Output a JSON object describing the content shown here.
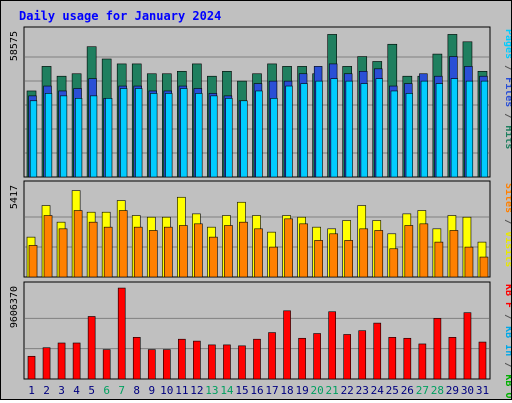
{
  "chart_data": {
    "type": "bar",
    "title": "Daily usage for January 2024",
    "categories": [
      "1",
      "2",
      "3",
      "4",
      "5",
      "6",
      "7",
      "8",
      "9",
      "10",
      "11",
      "12",
      "13",
      "14",
      "15",
      "16",
      "17",
      "18",
      "19",
      "20",
      "21",
      "22",
      "23",
      "24",
      "25",
      "26",
      "27",
      "28",
      "29",
      "30",
      "31"
    ],
    "weekend_days": [
      "6",
      "7",
      "13",
      "14",
      "20",
      "21",
      "27",
      "28"
    ],
    "panels": [
      {
        "name": "pages-files-hits",
        "max_label": "58575",
        "ylim": [
          0,
          58575
        ],
        "right_label_parts": [
          {
            "text": "Pages",
            "color": "#00ccff"
          },
          {
            "text": " / ",
            "color": "#555555"
          },
          {
            "text": "Files",
            "color": "#2a4fd6"
          },
          {
            "text": " / ",
            "color": "#555555"
          },
          {
            "text": "Hits",
            "color": "#1f7f5f"
          }
        ],
        "series": [
          {
            "name": "Hits",
            "color": "#1f7f5f",
            "values": [
              35000,
              45000,
              41000,
              42000,
              53000,
              48000,
              46000,
              46000,
              42000,
              42000,
              43000,
              46000,
              41000,
              43000,
              39000,
              42000,
              46000,
              45000,
              45000,
              42000,
              58000,
              45000,
              49000,
              47000,
              54000,
              41000,
              41000,
              50000,
              58000,
              55000,
              43000
            ]
          },
          {
            "name": "Files",
            "color": "#2a4fd6",
            "values": [
              33000,
              37000,
              35000,
              36000,
              40000,
              32000,
              37000,
              37000,
              35000,
              35000,
              37000,
              36000,
              34000,
              33000,
              31000,
              38000,
              39000,
              39000,
              42000,
              45000,
              46000,
              42000,
              43000,
              44000,
              37000,
              38000,
              42000,
              41000,
              49000,
              45000,
              41000
            ]
          },
          {
            "name": "Pages",
            "color": "#00ccff",
            "values": [
              31000,
              34000,
              33000,
              32000,
              33000,
              32000,
              36000,
              36000,
              34000,
              34000,
              36000,
              34000,
              33000,
              32000,
              31000,
              35000,
              32000,
              37000,
              38000,
              39000,
              40000,
              39000,
              38000,
              40000,
              35000,
              34000,
              39000,
              38000,
              40000,
              39000,
              39000
            ]
          }
        ]
      },
      {
        "name": "visits-sites",
        "max_label": "5417",
        "ylim": [
          0,
          5417
        ],
        "right_label_parts": [
          {
            "text": "Sites",
            "color": "#ff8000"
          },
          {
            "text": " / ",
            "color": "#555555"
          },
          {
            "text": "Visits",
            "color": "#e8e800"
          }
        ],
        "series": [
          {
            "name": "Visits",
            "color": "#ffff00",
            "values": [
              2400,
              4300,
              3300,
              5200,
              3900,
              3900,
              4600,
              3700,
              3600,
              3600,
              4800,
              3800,
              3000,
              3700,
              4500,
              3700,
              2700,
              3700,
              3600,
              3000,
              2900,
              3400,
              4300,
              3400,
              2600,
              3800,
              4000,
              2900,
              3700,
              3600,
              2100
            ]
          },
          {
            "name": "Sites",
            "color": "#ff8000",
            "values": [
              1900,
              3700,
              2900,
              4000,
              3300,
              3000,
              4000,
              3000,
              2800,
              3000,
              3100,
              3200,
              2400,
              3100,
              3300,
              2900,
              1800,
              3500,
              3200,
              2200,
              2600,
              2200,
              2900,
              2800,
              1700,
              3100,
              3200,
              2100,
              2800,
              1800,
              1200
            ]
          }
        ]
      },
      {
        "name": "kb-in-out",
        "max_label": "9606370",
        "ylim": [
          0,
          9606370
        ],
        "right_label_parts": [
          {
            "text": "KB F",
            "color": "#ff0000"
          },
          {
            "text": " / ",
            "color": "#555555"
          },
          {
            "text": "KB In",
            "color": "#00a8e8"
          },
          {
            "text": " / ",
            "color": "#555555"
          },
          {
            "text": "KB Out",
            "color": "#00b000"
          }
        ],
        "series": [
          {
            "name": "KB F",
            "color": "#ff0000",
            "values": [
              2400000,
              3300000,
              3800000,
              3800000,
              6600000,
              3100000,
              9600000,
              4400000,
              3100000,
              3100000,
              4200000,
              4000000,
              3600000,
              3600000,
              3500000,
              4200000,
              4900000,
              7200000,
              4300000,
              4800000,
              7100000,
              4700000,
              5100000,
              5900000,
              4400000,
              4300000,
              3700000,
              6400000,
              4400000,
              7000000,
              3900000
            ]
          }
        ]
      }
    ]
  },
  "colors": {
    "background": "#c0c0c0",
    "plot_background": "#c0c0c0",
    "grid": "#808080",
    "title": "#0000ff",
    "weekday_label": "#000080",
    "weekend_label": "#00a060"
  }
}
